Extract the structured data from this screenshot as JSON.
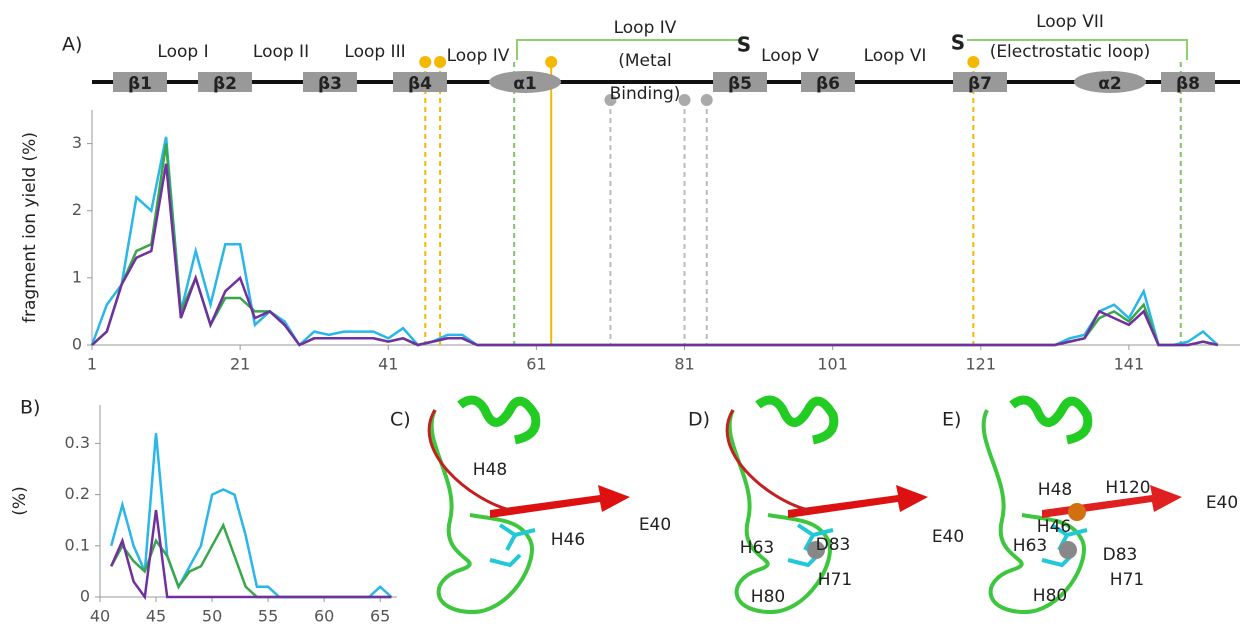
{
  "chart_data": [
    {
      "type": "line",
      "panel_label": "A)",
      "y_label": "fragment ion yield (%)",
      "x": [
        1,
        3,
        5,
        7,
        9,
        11,
        13,
        15,
        17,
        19,
        21,
        23,
        25,
        27,
        29,
        31,
        33,
        35,
        37,
        39,
        41,
        43,
        45,
        47,
        49,
        51,
        53,
        55,
        57,
        131,
        133,
        135,
        137,
        139,
        141,
        143,
        145,
        147,
        149,
        151,
        153
      ],
      "series": [
        {
          "color": "#29b6e8",
          "values": [
            0,
            0.6,
            0.9,
            2.2,
            2.0,
            3.1,
            0.5,
            1.4,
            0.6,
            1.5,
            1.5,
            0.3,
            0.5,
            0.35,
            0,
            0.2,
            0.15,
            0.2,
            0.2,
            0.2,
            0.1,
            0.25,
            0,
            0.05,
            0.15,
            0.15,
            0,
            0,
            0,
            0,
            0.1,
            0.15,
            0.5,
            0.6,
            0.4,
            0.8,
            0,
            0,
            0.05,
            0.2,
            0
          ]
        },
        {
          "color": "#3aa64a",
          "values": [
            0,
            0.2,
            0.9,
            1.4,
            1.5,
            3.0,
            0.5,
            1.0,
            0.3,
            0.7,
            0.7,
            0.5,
            0.5,
            0.3,
            0,
            0.1,
            0.1,
            0.1,
            0.1,
            0.1,
            0.05,
            0.1,
            0,
            0.05,
            0.1,
            0.1,
            0,
            0,
            0,
            0,
            0.05,
            0.1,
            0.4,
            0.5,
            0.35,
            0.6,
            0,
            0,
            0,
            0.05,
            0
          ]
        },
        {
          "color": "#7030a0",
          "values": [
            0,
            0.2,
            0.9,
            1.3,
            1.4,
            2.7,
            0.4,
            1.0,
            0.3,
            0.8,
            1.0,
            0.4,
            0.5,
            0.3,
            0,
            0.1,
            0.1,
            0.1,
            0.1,
            0.1,
            0.05,
            0.1,
            0,
            0.05,
            0.1,
            0.1,
            0,
            0,
            0,
            0,
            0.05,
            0.1,
            0.5,
            0.4,
            0.3,
            0.5,
            0,
            0,
            0,
            0.05,
            0
          ]
        }
      ],
      "xlim": [
        1,
        156
      ],
      "ylim": [
        0,
        3.5
      ],
      "xticks": [
        1,
        21,
        41,
        61,
        81,
        101,
        121,
        141
      ],
      "yticks": [
        0,
        1,
        2,
        3
      ],
      "markers": [
        {
          "x": 46,
          "color": "#f5b800"
        },
        {
          "x": 48,
          "color": "#f5b800"
        },
        {
          "x": 63,
          "color": "#f5b800"
        },
        {
          "x": 120,
          "color": "#f5b800"
        },
        {
          "x": 71,
          "color": "#bbbbbb"
        },
        {
          "x": 81,
          "color": "#bbbbbb"
        },
        {
          "x": 84,
          "color": "#bbbbbb"
        },
        {
          "x": 58,
          "color": "#7fc36a"
        },
        {
          "x": 148,
          "color": "#7fc36a"
        }
      ],
      "topology": [
        "β1",
        "β2",
        "β3",
        "β4",
        "α1",
        "β5",
        "β6",
        "β7",
        "α2",
        "β8"
      ],
      "loops": [
        [
          "Loop I"
        ],
        [
          "Loop II"
        ],
        [
          "Loop III"
        ],
        [
          "Loop IV"
        ],
        [
          "Loop IV",
          "(Metal",
          "Binding)"
        ],
        [
          "Loop V"
        ],
        [
          "Loop VI"
        ],
        [
          "Loop VII",
          "(Electrostatic loop)"
        ]
      ],
      "disulfide": [
        "S",
        "S"
      ]
    },
    {
      "type": "line",
      "panel_label": "B)",
      "y_label": "(%)",
      "x": [
        41,
        42,
        43,
        44,
        45,
        46,
        47,
        48,
        49,
        50,
        51,
        52,
        53,
        54,
        55,
        56,
        64,
        65,
        66
      ],
      "series": [
        {
          "color": "#29b6e8",
          "values": [
            0.1,
            0.18,
            0.1,
            0.05,
            0.32,
            0.08,
            0.02,
            0.06,
            0.1,
            0.2,
            0.21,
            0.2,
            0.12,
            0.02,
            0.02,
            0,
            0,
            0.02,
            0
          ]
        },
        {
          "color": "#3aa64a",
          "values": [
            0.06,
            0.1,
            0.07,
            0.05,
            0.11,
            0.08,
            0.02,
            0.05,
            0.06,
            0.1,
            0.14,
            0.08,
            0.02,
            0,
            0,
            0,
            0,
            0,
            0
          ]
        },
        {
          "color": "#7030a0",
          "values": [
            0.06,
            0.11,
            0.03,
            0,
            0.17,
            0,
            0,
            0,
            0,
            0,
            0,
            0,
            0,
            0,
            0,
            0,
            0,
            0,
            0
          ]
        }
      ],
      "xlim": [
        40,
        66.5
      ],
      "ylim": [
        0,
        0.375
      ],
      "xticks": [
        40,
        45,
        50,
        55,
        60,
        65
      ],
      "yticks": [
        0,
        0.1,
        0.2,
        0.3
      ]
    }
  ],
  "structures": [
    {
      "label": "C)",
      "residues": [
        "H48",
        "E40",
        "H46"
      ]
    },
    {
      "label": "D)",
      "residues": [
        "E40",
        "H63",
        "D83",
        "H80",
        "H71"
      ]
    },
    {
      "label": "E)",
      "residues": [
        "H48",
        "H120",
        "E40",
        "H46",
        "H63",
        "D83",
        "H80",
        "H71"
      ]
    }
  ]
}
